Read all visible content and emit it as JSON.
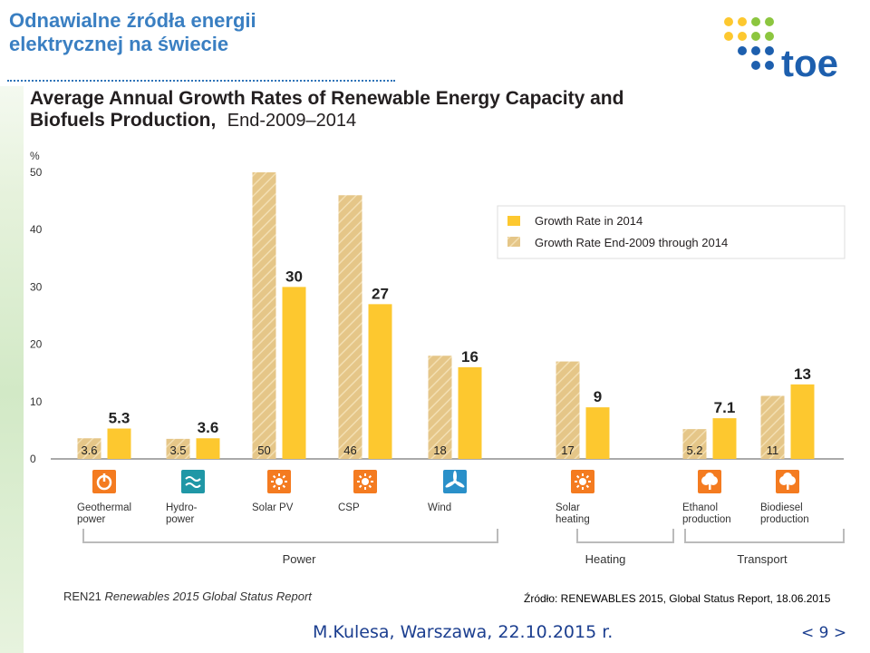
{
  "slide": {
    "title_line1": "Odnawialne źródła energii",
    "title_line2": "elektrycznej na świecie",
    "logo_text": "toe"
  },
  "colors": {
    "new": "#fdc82f",
    "avg": "#e2c07a",
    "title": "#3a7fc2",
    "footer": "#1b3e8f",
    "icon_orange": "#f47b20",
    "icon_teal": "#1f97a6",
    "icon_blue": "#2a90c9"
  },
  "chart_data": {
    "type": "bar",
    "title_line1": "Average Annual Growth Rates of Renewable Energy Capacity and",
    "title_line2_bold": "Biofuels Production,",
    "title_line2_light": "End-2009–2014",
    "ylabel": "%",
    "ylim": [
      0,
      50
    ],
    "yticks": [
      "0",
      "10",
      "20",
      "30",
      "40",
      "50"
    ],
    "categories": [
      {
        "label1": "Geothermal",
        "label2": "power",
        "icon": "geothermal-icon",
        "icon_color": "#f47b20",
        "growth_2014": 5.3,
        "growth_2014_label": "5.3",
        "avg_2009_2014": 3.6,
        "avg_label": "3.6"
      },
      {
        "label1": "Hydro-",
        "label2": "power",
        "icon": "hydropower-icon",
        "icon_color": "#1f97a6",
        "growth_2014": 3.6,
        "growth_2014_label": "3.6",
        "avg_2009_2014": 3.5,
        "avg_label": "3.5"
      },
      {
        "label1": "Solar PV",
        "label2": "",
        "icon": "solar-pv-icon",
        "icon_color": "#f47b20",
        "growth_2014": 30,
        "growth_2014_label": "30",
        "avg_2009_2014": 50,
        "avg_label": "50"
      },
      {
        "label1": "CSP",
        "label2": "",
        "icon": "csp-icon",
        "icon_color": "#f47b20",
        "growth_2014": 27,
        "growth_2014_label": "27",
        "avg_2009_2014": 46,
        "avg_label": "46"
      },
      {
        "label1": "Wind",
        "label2": "",
        "icon": "wind-icon",
        "icon_color": "#2a90c9",
        "growth_2014": 16,
        "growth_2014_label": "16",
        "avg_2009_2014": 18,
        "avg_label": "18"
      },
      {
        "label1": "Solar",
        "label2": "heating",
        "icon": "solar-heating-icon",
        "icon_color": "#f47b20",
        "growth_2014": 9,
        "growth_2014_label": "9",
        "avg_2009_2014": 17,
        "avg_label": "17"
      },
      {
        "label1": "Ethanol",
        "label2": "production",
        "icon": "ethanol-icon",
        "icon_color": "#f47b20",
        "growth_2014": 7.1,
        "growth_2014_label": "7.1",
        "avg_2009_2014": 5.2,
        "avg_label": "5.2"
      },
      {
        "label1": "Biodiesel",
        "label2": "production",
        "icon": "biodiesel-icon",
        "icon_color": "#f47b20",
        "growth_2014": 13,
        "growth_2014_label": "13",
        "avg_2009_2014": 11,
        "avg_label": "11"
      }
    ],
    "legend": [
      "Growth Rate in 2014",
      "Growth Rate End-2009 through 2014"
    ],
    "groups": [
      "Power",
      "Heating",
      "Transport"
    ],
    "source_publisher": "REN21",
    "source_title": "Renewables 2015 Global Status Report"
  },
  "footer": {
    "source": "Źródło: RENEWABLES 2015, Global Status Report, 18.06.2015",
    "author": "M.Kulesa, Warszawa, 22.10.2015 r.",
    "page": "< 9 >"
  }
}
